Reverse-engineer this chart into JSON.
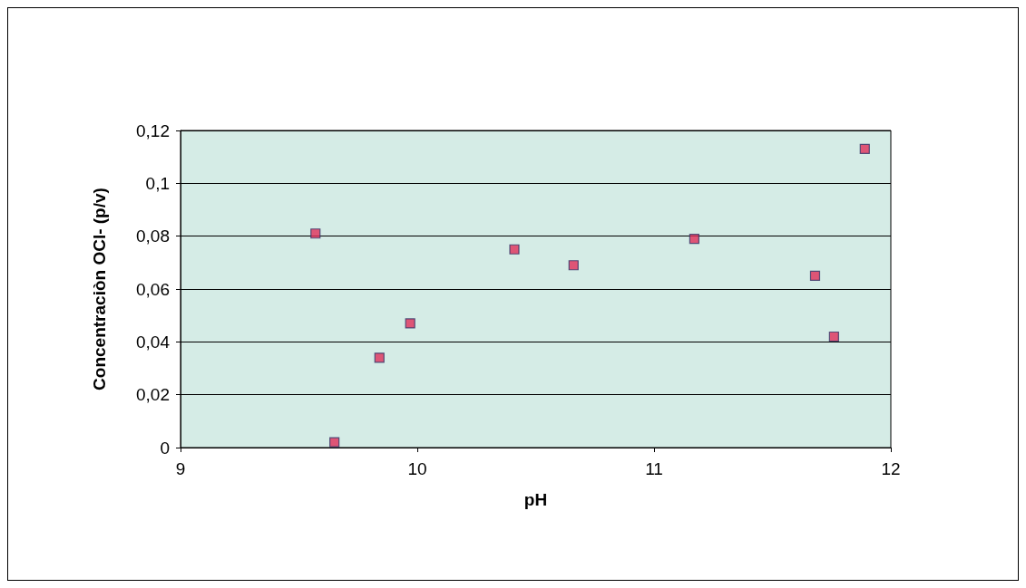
{
  "chart_data": {
    "type": "scatter",
    "xlabel": "pH",
    "ylabel": "Concentraciòn OCl- (p/v)",
    "x": [
      9.57,
      9.65,
      9.84,
      9.97,
      10.41,
      10.66,
      11.17,
      11.68,
      11.76,
      11.89
    ],
    "values": [
      0.081,
      0.002,
      0.034,
      0.047,
      0.075,
      0.069,
      0.079,
      0.065,
      0.042,
      0.113
    ],
    "color": "#e0305a",
    "marker": "square",
    "xlim": [
      9,
      12
    ],
    "xticks": [
      9,
      10,
      11,
      12
    ],
    "ylim": [
      0,
      0.12
    ],
    "yticks": [
      {
        "value": 0,
        "label": "0"
      },
      {
        "value": 0.02,
        "label": "0,02"
      },
      {
        "value": 0.04,
        "label": "0,04"
      },
      {
        "value": 0.06,
        "label": "0,06"
      },
      {
        "value": 0.08,
        "label": "0,08"
      },
      {
        "value": 0.1,
        "label": "0,1"
      },
      {
        "value": 0.12,
        "label": "0,12"
      }
    ],
    "grid": "y"
  }
}
